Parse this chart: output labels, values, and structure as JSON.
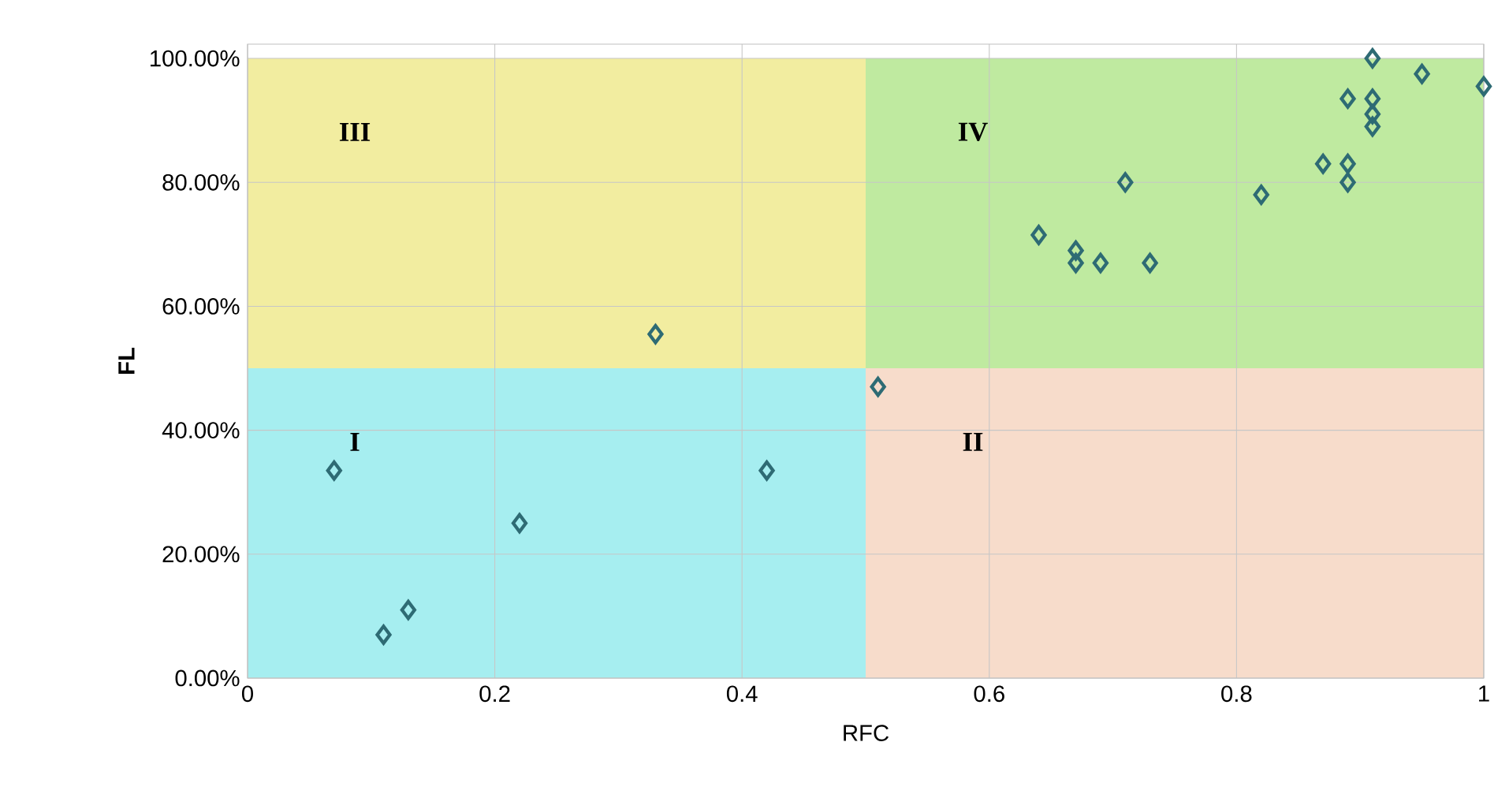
{
  "chart_data": {
    "type": "scatter",
    "xlabel": "RFC",
    "ylabel": "FL",
    "xlim": [
      0,
      1
    ],
    "ylim": [
      0,
      102.3
    ],
    "xticks": [
      0,
      0.2,
      0.4,
      0.6,
      0.8,
      1
    ],
    "yticks": [
      {
        "value": 0,
        "label": "0.00%"
      },
      {
        "value": 20,
        "label": "20.00%"
      },
      {
        "value": 40,
        "label": "40.00%"
      },
      {
        "value": 60,
        "label": "60.00%"
      },
      {
        "value": 80,
        "label": "80.00%"
      },
      {
        "value": 100,
        "label": "100.00%"
      }
    ],
    "grid": true,
    "series": [
      {
        "type": "area",
        "name": "III",
        "color": "#f2eda0",
        "x": [
          0,
          0.5
        ],
        "values": [
          100,
          100
        ]
      },
      {
        "type": "area",
        "name": "I",
        "color": "#a6eef0",
        "x": [
          0,
          0.5
        ],
        "values": [
          50,
          50
        ]
      },
      {
        "type": "area",
        "name": "IV",
        "color": "#bfeaa0",
        "x": [
          0.5,
          1
        ],
        "values": [
          100,
          100
        ]
      },
      {
        "type": "area",
        "name": "II",
        "color": "#f7dccb",
        "x": [
          0.5,
          1
        ],
        "values": [
          50,
          50
        ]
      },
      {
        "marker": "diamond",
        "color": "#2e6b74",
        "x": [
          0.07,
          0.11,
          0.13,
          0.22,
          0.33,
          0.42,
          0.51,
          0.64,
          0.67,
          0.67,
          0.69,
          0.71,
          0.73,
          0.82,
          0.87,
          0.89,
          0.89,
          0.89,
          0.91,
          0.91,
          0.91,
          0.91,
          0.95,
          1.0
        ],
        "values": [
          33.5,
          7,
          11,
          25,
          55.5,
          33.5,
          47,
          71.5,
          69,
          67,
          67,
          80,
          67,
          78,
          83,
          93.5,
          83,
          80,
          100,
          93.5,
          91,
          89,
          97.5,
          95.5
        ]
      }
    ]
  }
}
